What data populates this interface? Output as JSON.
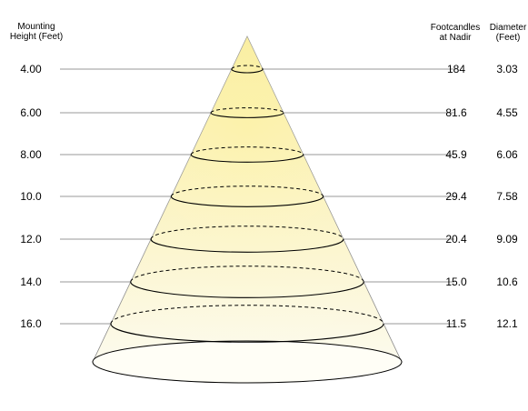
{
  "headers": {
    "mounting_line1": "Mounting",
    "mounting_line2": "Height (Feet)",
    "footcandles_line1": "Footcandles",
    "footcandles_line2": "at Nadir",
    "diameter_line1": "Diameter",
    "diameter_line2": "(Feet)"
  },
  "rows": [
    {
      "height": "4.00",
      "footcandles": "184",
      "diameter": "3.03"
    },
    {
      "height": "6.00",
      "footcandles": "81.6",
      "diameter": "4.55"
    },
    {
      "height": "8.00",
      "footcandles": "45.9",
      "diameter": "6.06"
    },
    {
      "height": "10.0",
      "footcandles": "29.4",
      "diameter": "7.58"
    },
    {
      "height": "12.0",
      "footcandles": "20.4",
      "diameter": "9.09"
    },
    {
      "height": "14.0",
      "footcandles": "15.0",
      "diameter": "10.6"
    },
    {
      "height": "16.0",
      "footcandles": "11.5",
      "diameter": "12.1"
    }
  ],
  "colors": {
    "cone_top": "#f7e88a",
    "cone_bottom": "#fdfcf4",
    "leader_line": "#9a9a9a",
    "outline": "#000000"
  }
}
